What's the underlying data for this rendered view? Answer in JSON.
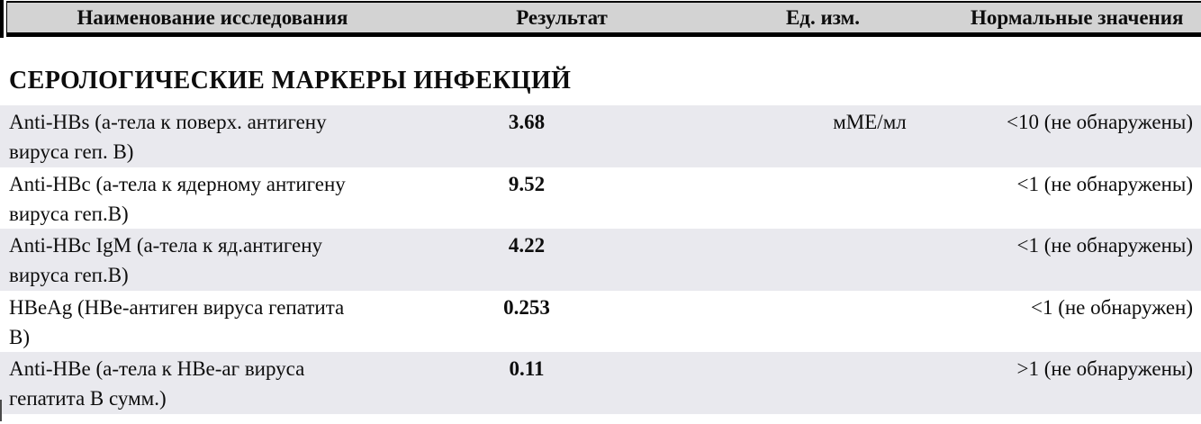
{
  "colors": {
    "header_bg": "#d3d3d3",
    "row_stripe_bg": "#e9e9ee",
    "border": "#000000",
    "text": "#0d0d0d"
  },
  "table": {
    "headers": {
      "name": "Наименование исследования",
      "result": "Результат",
      "units": "Ед. изм.",
      "normal": "Нормальные значения"
    },
    "section_title": "СЕРОЛОГИЧЕСКИЕ МАРКЕРЫ ИНФЕКЦИЙ",
    "rows": [
      {
        "name": "Anti-HBs (а-тела к поверх. антигену вируса геп. В)",
        "name_lines": [
          "Anti-HBs (а-тела к поверх. антигену",
          "вируса геп. В)"
        ],
        "result": "3.68",
        "units": "мМЕ/мл",
        "normal": "<10 (не обнаружены)"
      },
      {
        "name": "Anti-HBc (а-тела к ядерному антигену вируса геп.В)",
        "name_lines": [
          "Anti-HBc (а-тела к ядерному антигену",
          "вируса геп.В)"
        ],
        "result": "9.52",
        "units": "",
        "normal": "<1 (не обнаружены)"
      },
      {
        "name": "Anti-HBc IgM (а-тела к яд.антигену вируса геп.В)",
        "name_lines": [
          "Anti-HBc IgM (а-тела к яд.антигену",
          "вируса геп.В)"
        ],
        "result": "4.22",
        "units": "",
        "normal": "<1 (не обнаружены)"
      },
      {
        "name": "HBeAg (НВе-антиген вируса гепатита В)",
        "name_lines": [
          "HBeAg (НВе-антиген вируса гепатита",
          "В)"
        ],
        "result": "0.253",
        "units": "",
        "normal": "<1 (не обнаружен)"
      },
      {
        "name": "Anti-HBe (а-тела к НВе-аг вируса гепатита В сумм.)",
        "name_lines": [
          "Anti-HBe (а-тела к НВе-аг вируса",
          "гепатита В сумм.)"
        ],
        "result": "0.11",
        "units": "",
        "normal": ">1 (не обнаружены)"
      }
    ]
  }
}
